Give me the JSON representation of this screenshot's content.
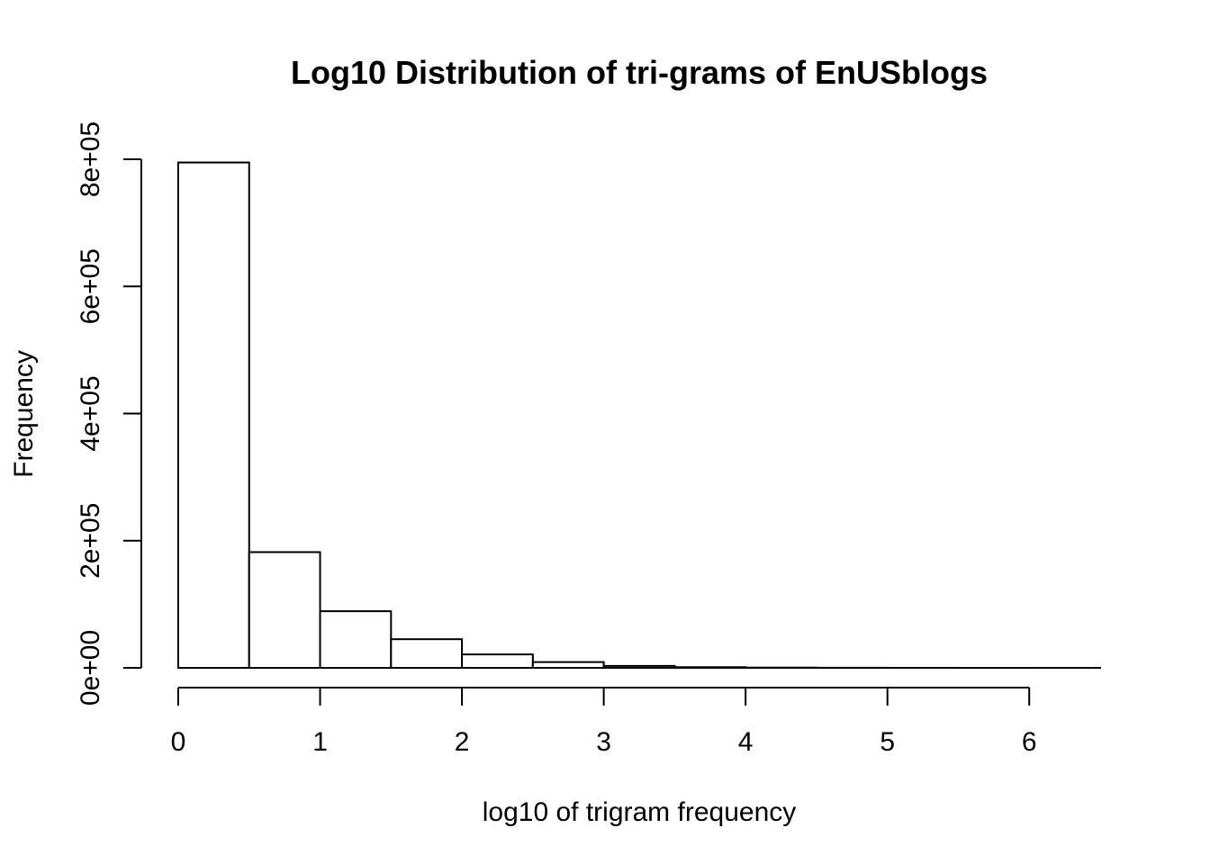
{
  "chart_data": {
    "type": "bar",
    "title": "Log10 Distribution of tri-grams of EnUSblogs",
    "xlabel": "log10 of trigram frequency",
    "ylabel": "Frequency",
    "bin_width": 0.5,
    "bins": [
      {
        "start": 0.0,
        "end": 0.5,
        "value": 795000
      },
      {
        "start": 0.5,
        "end": 1.0,
        "value": 182000
      },
      {
        "start": 1.0,
        "end": 1.5,
        "value": 89000
      },
      {
        "start": 1.5,
        "end": 2.0,
        "value": 45000
      },
      {
        "start": 2.0,
        "end": 2.5,
        "value": 21000
      },
      {
        "start": 2.5,
        "end": 3.0,
        "value": 9000
      },
      {
        "start": 3.0,
        "end": 3.5,
        "value": 3000
      },
      {
        "start": 3.5,
        "end": 4.0,
        "value": 1000
      },
      {
        "start": 4.0,
        "end": 4.5,
        "value": 400
      },
      {
        "start": 4.5,
        "end": 5.0,
        "value": 150
      },
      {
        "start": 5.0,
        "end": 5.5,
        "value": 50
      },
      {
        "start": 5.5,
        "end": 6.0,
        "value": 20
      },
      {
        "start": 6.0,
        "end": 6.5,
        "value": 5
      }
    ],
    "xlim": [
      0,
      6.5
    ],
    "ylim": [
      0,
      800000
    ],
    "x_ticks": [
      0,
      1,
      2,
      3,
      4,
      5,
      6
    ],
    "x_tick_labels": [
      "0",
      "1",
      "2",
      "3",
      "4",
      "5",
      "6"
    ],
    "y_ticks": [
      0,
      200000,
      400000,
      600000,
      800000
    ],
    "y_tick_labels": [
      "0e+00",
      "2e+05",
      "4e+05",
      "6e+05",
      "8e+05"
    ],
    "grid": false,
    "legend": "none"
  }
}
